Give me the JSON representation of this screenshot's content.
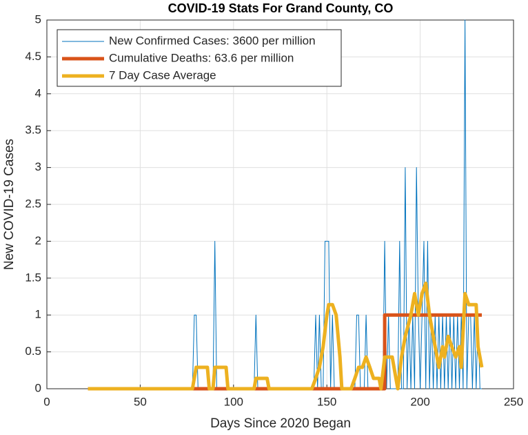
{
  "chart_data": {
    "type": "line",
    "title": "COVID-19 Stats For Grand County, CO",
    "x_label": "Days Since 2020 Began",
    "y_label": "New COVID-19 Cases",
    "xlim": [
      0,
      250
    ],
    "xticks": [
      0,
      50,
      100,
      150,
      200,
      250
    ],
    "ylim": [
      0,
      5
    ],
    "yticks": [
      0,
      0.5,
      1,
      1.5,
      2,
      2.5,
      3,
      3.5,
      4,
      4.5,
      5
    ],
    "grid": true,
    "legend_location": "northwest",
    "series": [
      {
        "name": "New Confirmed Cases: 3600 per million",
        "color": "#0072BD",
        "width": 1,
        "x": [
          22,
          78,
          79,
          80,
          81,
          89,
          90,
          91,
          111,
          112,
          113,
          143,
          144,
          145,
          146,
          147,
          148,
          149,
          151,
          152,
          153,
          154,
          165,
          166,
          167,
          168,
          170,
          171,
          172,
          180,
          181,
          182,
          183,
          184,
          188,
          189,
          190,
          191,
          192,
          193,
          194,
          195,
          196,
          197,
          198,
          199,
          200,
          201,
          202,
          203,
          204,
          205,
          206,
          207,
          208,
          209,
          210,
          211,
          212,
          213,
          214,
          215,
          216,
          217,
          218,
          219,
          220,
          221,
          222,
          223,
          224,
          225,
          226,
          227,
          228,
          229,
          230,
          231,
          232,
          233
        ],
        "values": [
          0,
          0,
          1,
          1,
          0,
          0,
          2,
          0,
          0,
          1,
          0,
          0,
          1,
          0,
          1,
          0,
          0,
          2,
          2,
          0,
          1,
          0,
          0,
          1,
          1,
          0,
          0,
          1,
          0,
          0,
          2,
          0,
          1,
          0,
          0,
          2,
          0,
          0,
          3,
          0,
          1,
          0,
          1,
          0,
          3,
          1,
          0,
          1,
          2,
          0,
          2,
          0,
          1,
          0,
          1,
          0,
          1,
          0,
          1,
          0,
          1,
          0,
          1,
          0,
          1,
          0,
          1,
          0,
          1,
          0,
          5,
          0,
          1,
          1,
          0,
          1,
          0,
          1,
          0,
          0
        ]
      },
      {
        "name": "Cumulative Deaths: 63.6 per million",
        "color": "#D95319",
        "width": 5,
        "x": [
          22,
          181,
          181,
          233
        ],
        "values": [
          0,
          0,
          1,
          1
        ]
      },
      {
        "name": "7 Day Case Average",
        "color": "#EDB120",
        "width": 5,
        "x": [
          22,
          78,
          80,
          86,
          87,
          89,
          90,
          96,
          97,
          111,
          112,
          118,
          119,
          142,
          144,
          146,
          148,
          150,
          151,
          153,
          155,
          157,
          158,
          163,
          165,
          167,
          169,
          171,
          173,
          175,
          178,
          179,
          181,
          185,
          187,
          188,
          190,
          192,
          195,
          197,
          199,
          201,
          203,
          205,
          207,
          208,
          210,
          212,
          213,
          215,
          217,
          219,
          221,
          222,
          224,
          226,
          230,
          231,
          233
        ],
        "values": [
          0,
          0,
          0.29,
          0.29,
          0,
          0,
          0.29,
          0.29,
          0,
          0,
          0.14,
          0.14,
          0,
          0,
          0.14,
          0.29,
          0.57,
          1,
          1.14,
          1.14,
          1,
          0.43,
          0,
          0,
          0.14,
          0.29,
          0.29,
          0.43,
          0.29,
          0.14,
          0.14,
          0,
          0.43,
          0.43,
          0.14,
          0,
          0.43,
          0.71,
          1,
          1.29,
          1,
          1.29,
          1.43,
          1,
          0.71,
          0.57,
          0.29,
          0.57,
          0.43,
          0.71,
          0.57,
          0.43,
          0.57,
          0.29,
          1.29,
          1.14,
          1.14,
          0.57,
          0.29
        ]
      }
    ]
  }
}
